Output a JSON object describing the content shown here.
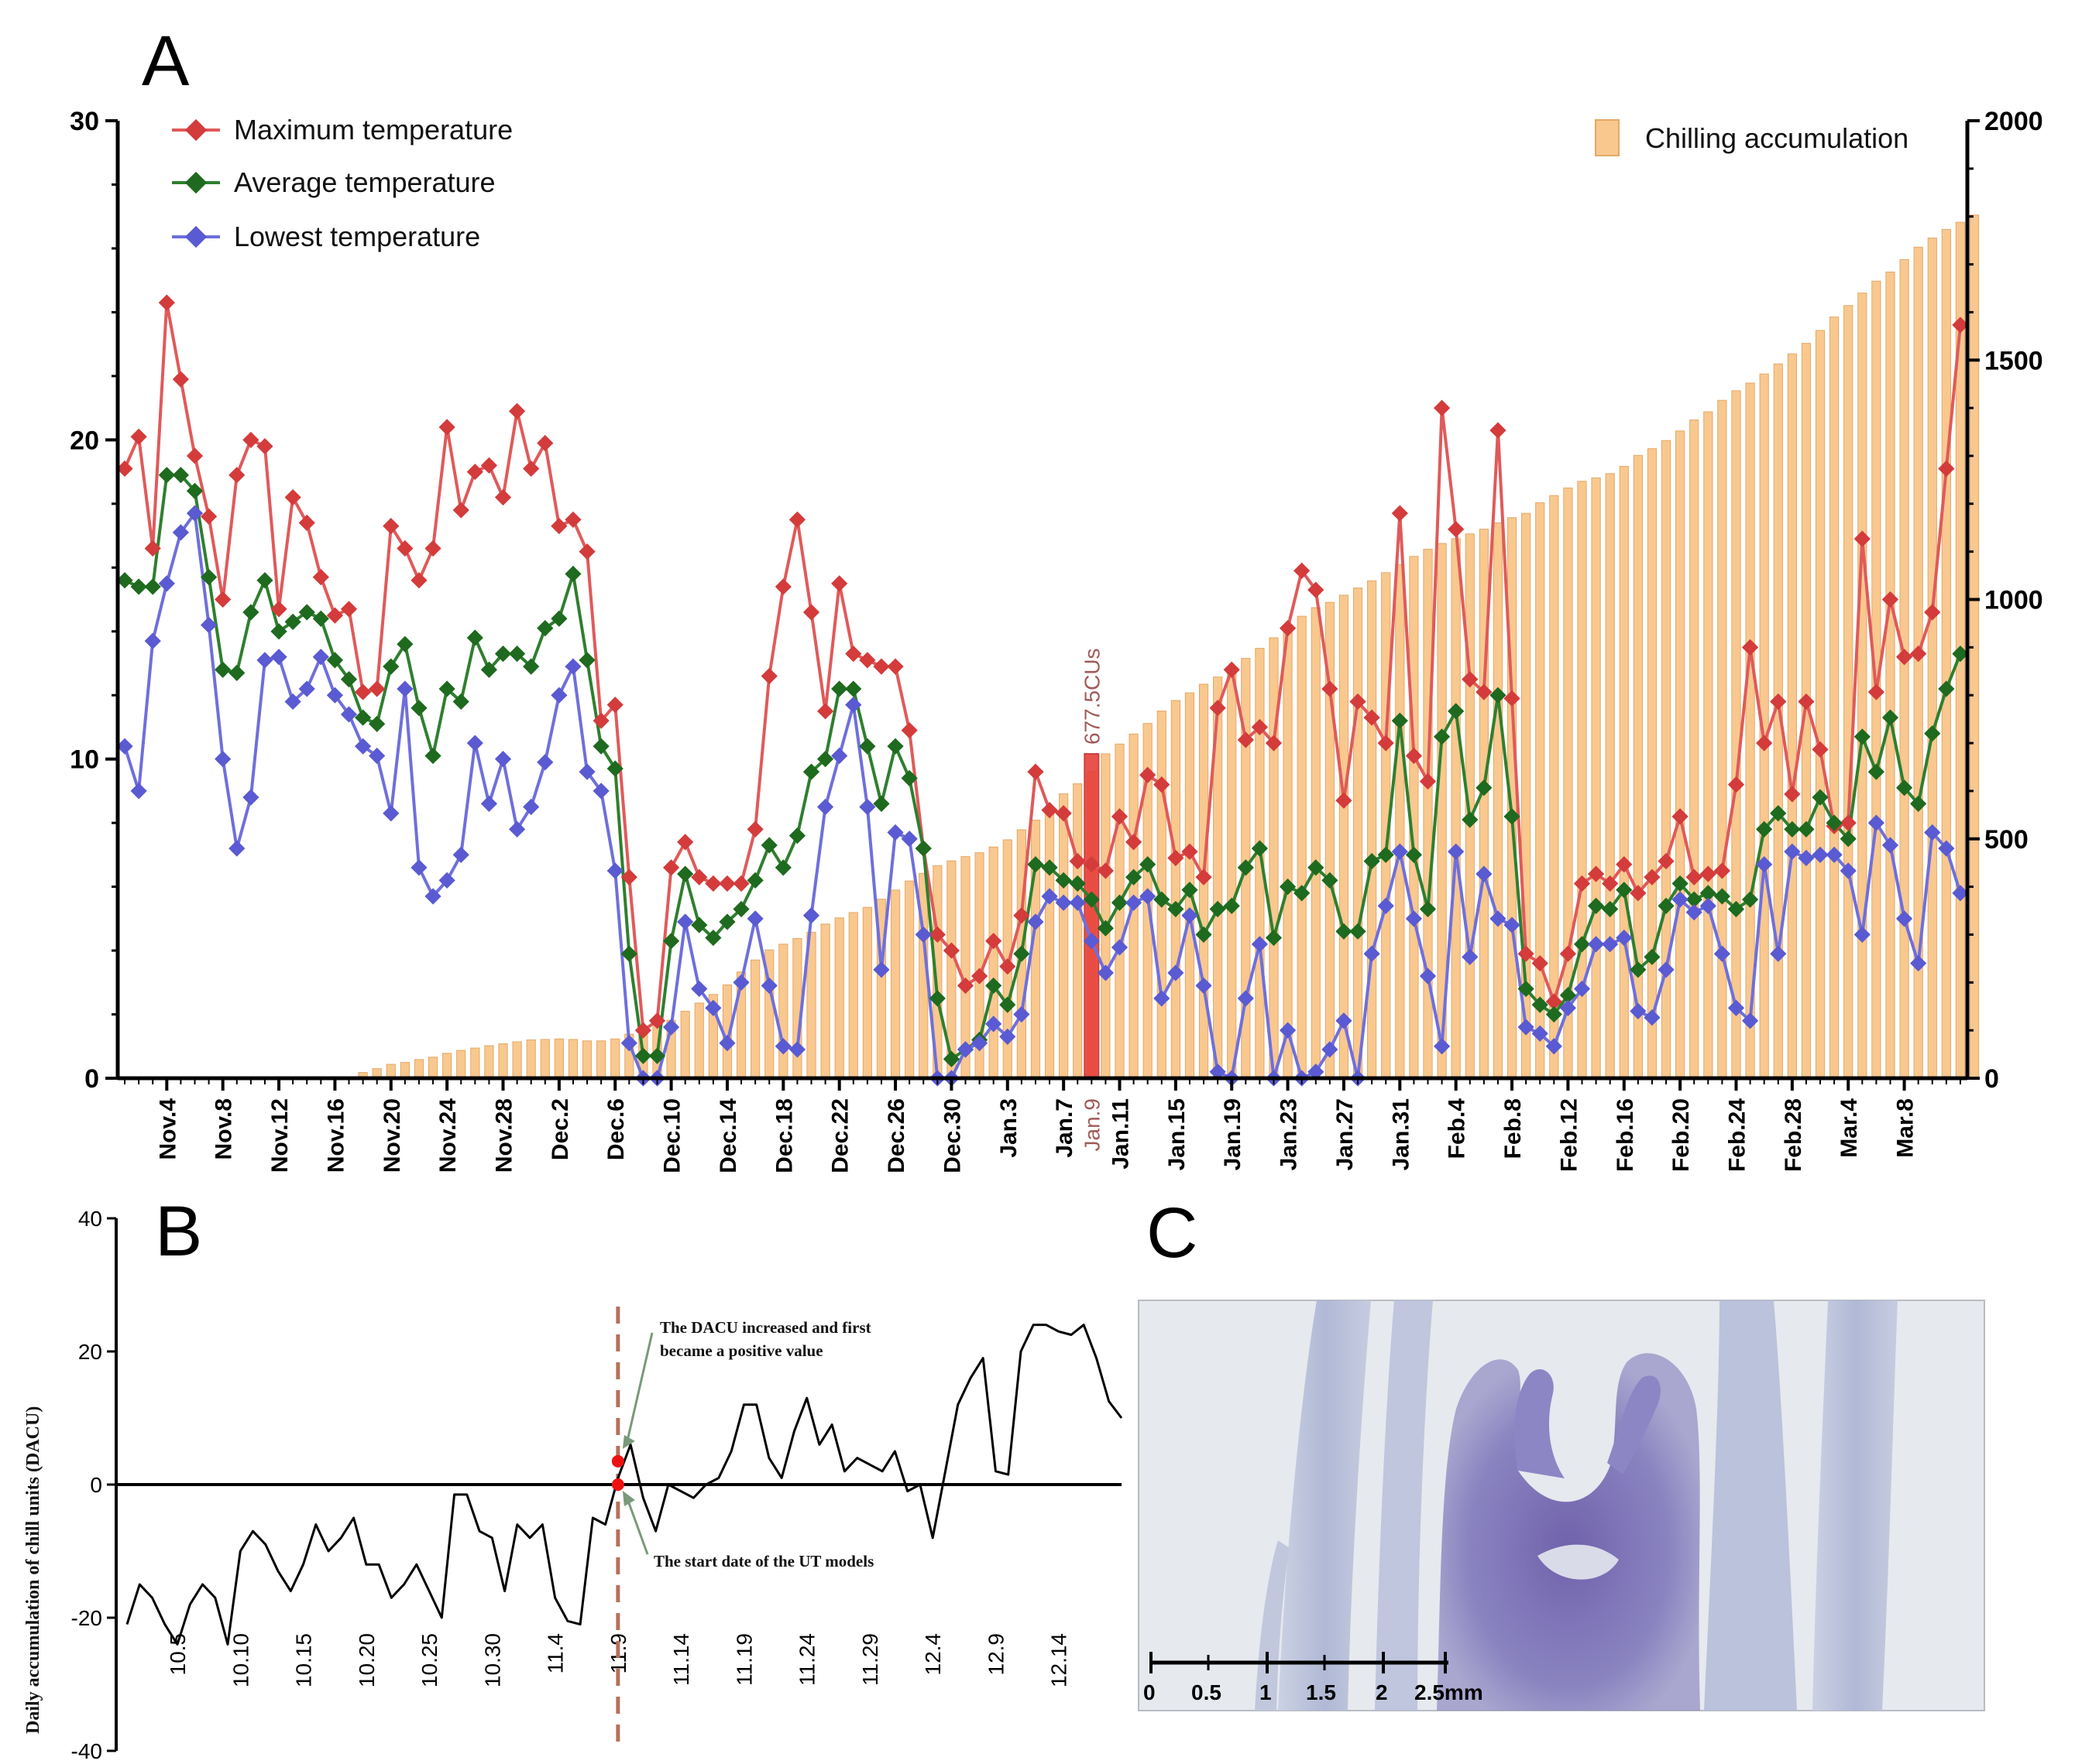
{
  "panels": {
    "a": "A",
    "b": "B",
    "c": "C"
  },
  "colors": {
    "max": "#e05a5a",
    "max_marker": "#d43b3b",
    "avg": "#2f7f2f",
    "avg_marker": "#1e6a1e",
    "low": "#6f6fdc",
    "low_marker": "#5a5ad2",
    "bar": "#f9c88f",
    "bar_edge": "#e2a968",
    "highlight": "#e8403a"
  },
  "chart_data": [
    {
      "type": "line+bar",
      "title": "",
      "legend_left": [
        "Maximum temperature",
        "Average temperature",
        "Lowest temperature"
      ],
      "legend_right": "Chilling accumulation",
      "y_left": {
        "range": [
          0,
          30
        ],
        "ticks": [
          "0",
          "10",
          "20",
          "30"
        ]
      },
      "y_right": {
        "range": [
          0,
          2000
        ],
        "ticks": [
          "0",
          "500",
          "1000",
          "1500",
          "2000"
        ]
      },
      "x_tick_labels": [
        "Nov.4",
        "Nov.8",
        "Nov.12",
        "Nov.16",
        "Nov.20",
        "Nov.24",
        "Nov.28",
        "Dec.2",
        "Dec.6",
        "Dec.10",
        "Dec.14",
        "Dec.18",
        "Dec.22",
        "Dec.26",
        "Dec.30",
        "Jan.3",
        "Jan.7",
        "Jan.11",
        "Jan.15",
        "Jan.19",
        "Jan.23",
        "Jan.27",
        "Jan.31",
        "Feb.4",
        "Feb.8",
        "Feb.12",
        "Feb.16",
        "Feb.20",
        "Feb.24",
        "Feb.28",
        "Mar.4",
        "Mar.8"
      ],
      "x_tick_days": [
        3,
        7,
        11,
        15,
        19,
        23,
        27,
        31,
        35,
        39,
        43,
        47,
        51,
        55,
        59,
        63,
        67,
        71,
        75,
        79,
        83,
        87,
        91,
        95,
        99,
        103,
        107,
        111,
        115,
        119,
        123,
        127
      ],
      "highlight": {
        "day": 69,
        "label": "Jan.9",
        "value_label": "677.5CUs",
        "chill_value": 677.5
      },
      "series": [
        {
          "name": "Maximum temperature",
          "values": [
            19.1,
            20.1,
            16.6,
            24.3,
            21.9,
            19.5,
            17.6,
            15.0,
            18.9,
            20.0,
            19.8,
            14.7,
            18.2,
            17.4,
            15.7,
            14.5,
            14.7,
            12.1,
            12.2,
            17.3,
            16.6,
            15.6,
            16.6,
            20.4,
            17.8,
            19.0,
            19.2,
            18.2,
            20.9,
            19.1,
            19.9,
            17.3,
            17.5,
            16.5,
            11.2,
            11.7,
            6.3,
            1.5,
            1.8,
            6.6,
            7.4,
            6.3,
            6.1,
            6.1,
            6.1,
            7.8,
            12.6,
            15.4,
            17.5,
            14.6,
            11.5,
            15.5,
            13.3,
            13.1,
            12.9,
            12.9,
            10.9,
            7.2,
            4.5,
            4.0,
            2.9,
            3.2,
            4.3,
            3.5,
            5.1,
            9.6,
            8.4,
            8.3,
            6.8,
            6.7,
            6.5,
            8.2,
            7.4,
            9.5,
            9.2,
            6.9,
            7.1,
            6.3,
            11.6,
            12.8,
            10.6,
            11.0,
            10.5,
            14.1,
            15.9,
            15.3,
            12.2,
            8.7,
            11.8,
            11.3,
            10.5,
            17.7,
            10.1,
            9.3,
            21.0,
            17.2,
            12.5,
            12.1,
            20.3,
            11.9,
            3.9,
            3.6,
            2.4,
            3.9,
            6.1,
            6.4,
            6.1,
            6.7,
            5.8,
            6.3,
            6.8,
            8.2,
            6.3,
            6.4,
            6.5,
            9.2,
            13.5,
            10.5,
            11.8,
            8.9,
            11.8,
            10.3,
            7.9,
            8.0,
            16.9,
            12.1,
            15.0,
            13.2,
            13.3,
            14.6,
            19.1,
            23.6
          ]
        },
        {
          "name": "Average temperature",
          "values": [
            15.6,
            15.4,
            15.4,
            18.9,
            18.9,
            18.4,
            15.7,
            12.8,
            12.7,
            14.6,
            15.6,
            14.0,
            14.3,
            14.6,
            14.4,
            13.1,
            12.5,
            11.3,
            11.1,
            12.9,
            13.6,
            11.6,
            10.1,
            12.2,
            11.8,
            13.8,
            12.8,
            13.3,
            13.3,
            12.9,
            14.1,
            14.4,
            15.8,
            13.1,
            10.4,
            9.7,
            3.9,
            0.7,
            0.7,
            4.3,
            6.4,
            4.8,
            4.4,
            4.9,
            5.3,
            6.2,
            7.3,
            6.6,
            7.6,
            9.6,
            10.0,
            12.2,
            12.2,
            10.4,
            8.6,
            10.4,
            9.4,
            7.2,
            2.5,
            0.6,
            0.9,
            1.2,
            2.9,
            2.3,
            3.9,
            6.7,
            6.6,
            6.2,
            6.1,
            5.6,
            4.7,
            5.5,
            6.3,
            6.7,
            5.6,
            5.3,
            5.9,
            4.5,
            5.3,
            5.4,
            6.6,
            7.2,
            4.4,
            6.0,
            5.8,
            6.6,
            6.2,
            4.6,
            4.6,
            6.8,
            7.0,
            11.2,
            7.0,
            5.3,
            10.7,
            11.5,
            8.1,
            9.1,
            12.0,
            8.2,
            2.8,
            2.3,
            2.0,
            2.6,
            4.2,
            5.4,
            5.3,
            5.9,
            3.4,
            3.8,
            5.4,
            6.1,
            5.6,
            5.8,
            5.7,
            5.3,
            5.6,
            7.8,
            8.3,
            7.8,
            7.8,
            8.8,
            8.0,
            7.5,
            10.7,
            9.6,
            11.3,
            9.1,
            8.6,
            10.8,
            12.2,
            13.3
          ]
        },
        {
          "name": "Lowest temperature",
          "values": [
            10.4,
            9.0,
            13.7,
            15.5,
            17.1,
            17.7,
            14.2,
            10.0,
            7.2,
            8.8,
            13.1,
            13.2,
            11.8,
            12.2,
            13.2,
            12.0,
            11.4,
            10.4,
            10.1,
            8.3,
            12.2,
            6.6,
            5.7,
            6.2,
            7.0,
            10.5,
            8.6,
            10.0,
            7.8,
            8.5,
            9.9,
            12.0,
            12.9,
            9.6,
            9.0,
            6.5,
            1.1,
            0.0,
            0.0,
            1.6,
            4.9,
            2.8,
            2.2,
            1.1,
            3.0,
            5.0,
            2.9,
            1.0,
            0.9,
            5.1,
            8.5,
            10.1,
            11.7,
            8.5,
            3.4,
            7.7,
            7.5,
            4.5,
            0.0,
            0.0,
            0.9,
            1.1,
            1.7,
            1.3,
            2.0,
            4.9,
            5.7,
            5.5,
            5.5,
            4.3,
            3.3,
            4.1,
            5.5,
            5.7,
            2.5,
            3.3,
            5.1,
            2.9,
            0.2,
            0.0,
            2.5,
            4.2,
            0.0,
            1.5,
            0.0,
            0.2,
            0.9,
            1.8,
            0.0,
            3.9,
            5.4,
            7.1,
            5.0,
            3.2,
            1.0,
            7.1,
            3.8,
            6.4,
            5.0,
            4.8,
            1.6,
            1.4,
            1.0,
            2.2,
            2.8,
            4.2,
            4.2,
            4.4,
            2.1,
            1.9,
            3.4,
            5.6,
            5.2,
            5.4,
            3.9,
            2.2,
            1.8,
            6.7,
            3.9,
            7.1,
            6.9,
            7.0,
            7.0,
            6.5,
            4.5,
            8.0,
            7.3,
            5.0,
            3.6,
            7.7,
            7.2,
            5.8
          ]
        },
        {
          "name": "Chilling accumulation",
          "values": [
            0,
            0,
            0,
            0,
            0,
            0,
            0,
            0,
            3,
            3,
            0,
            0,
            0,
            0,
            0,
            0,
            0,
            12,
            20,
            29,
            33,
            39,
            44,
            52,
            58,
            63,
            68,
            72,
            76,
            80,
            81,
            82,
            81,
            78,
            78,
            82,
            92,
            105,
            113,
            121,
            140,
            157,
            175,
            195,
            222,
            247,
            268,
            280,
            292,
            305,
            322,
            335,
            346,
            357,
            374,
            393,
            412,
            428,
            444,
            454,
            463,
            471,
            483,
            498,
            519,
            539,
            562,
            594,
            615,
            641,
            677.5,
            698,
            719,
            741,
            767,
            789,
            805,
            823,
            838,
            857,
            877,
            898,
            920,
            943,
            965,
            983,
            994,
            1009,
            1024,
            1039,
            1056,
            1073,
            1090,
            1105,
            1117,
            1127,
            1137,
            1147,
            1160,
            1171,
            1180,
            1202,
            1217,
            1233,
            1247,
            1254,
            1263,
            1278,
            1301,
            1315,
            1332,
            1352,
            1375,
            1392,
            1416,
            1436,
            1452,
            1471,
            1492,
            1513,
            1535,
            1562,
            1590,
            1614,
            1640,
            1665,
            1684,
            1710,
            1736,
            1755,
            1773,
            1788,
            1803
          ]
        }
      ]
    },
    {
      "type": "line",
      "ylabel": "Daily accumulation of chill units (DACU)",
      "ylim": [
        -40,
        40
      ],
      "y_ticks": [
        "-40",
        "-20",
        "0",
        "20",
        "40"
      ],
      "x_tick_labels": [
        "10.5",
        "10.10",
        "10.15",
        "10.20",
        "10.25",
        "10.30",
        "11.4",
        "11.9",
        "11.14",
        "11.19",
        "11.24",
        "11.29",
        "12.4",
        "12.9",
        "12.14"
      ],
      "x_tick_days": [
        4,
        9,
        14,
        19,
        24,
        29,
        34,
        39,
        44,
        49,
        54,
        59,
        64,
        69,
        74
      ],
      "start_day": 39,
      "values": [
        -21,
        -15,
        -17,
        -21,
        -24,
        -18,
        -15,
        -17,
        -24,
        -10,
        -7,
        -9,
        -13,
        -16,
        -12,
        -6,
        -10,
        -8,
        -5,
        -12,
        -12,
        -17,
        -15,
        -12,
        -16,
        -20,
        -1.5,
        -1.5,
        -7,
        -8,
        -16,
        -6,
        -8,
        -6,
        -17,
        -20.5,
        -21,
        -5,
        -6,
        1,
        6,
        -2,
        -7,
        0,
        -1,
        -2,
        0,
        1,
        5,
        12,
        12,
        4,
        1,
        8,
        13,
        6,
        9,
        2,
        4,
        3,
        2,
        5,
        -1,
        0,
        -8,
        2,
        12,
        16,
        19,
        2,
        1.5,
        20,
        24,
        24,
        23,
        22.5,
        24,
        19,
        12.5,
        10
      ],
      "annotations": [
        {
          "id": "positive",
          "line1": "The DACU increased and first",
          "line2": "became a positive value",
          "day": 39,
          "value": 3.5
        },
        {
          "id": "start",
          "text": "The start date of the UT models",
          "day": 39,
          "value": 0
        }
      ]
    }
  ],
  "micrograph": {
    "scale_labels": [
      "0",
      "0.5",
      "1",
      "1.5",
      "2",
      "2.5mm"
    ]
  }
}
